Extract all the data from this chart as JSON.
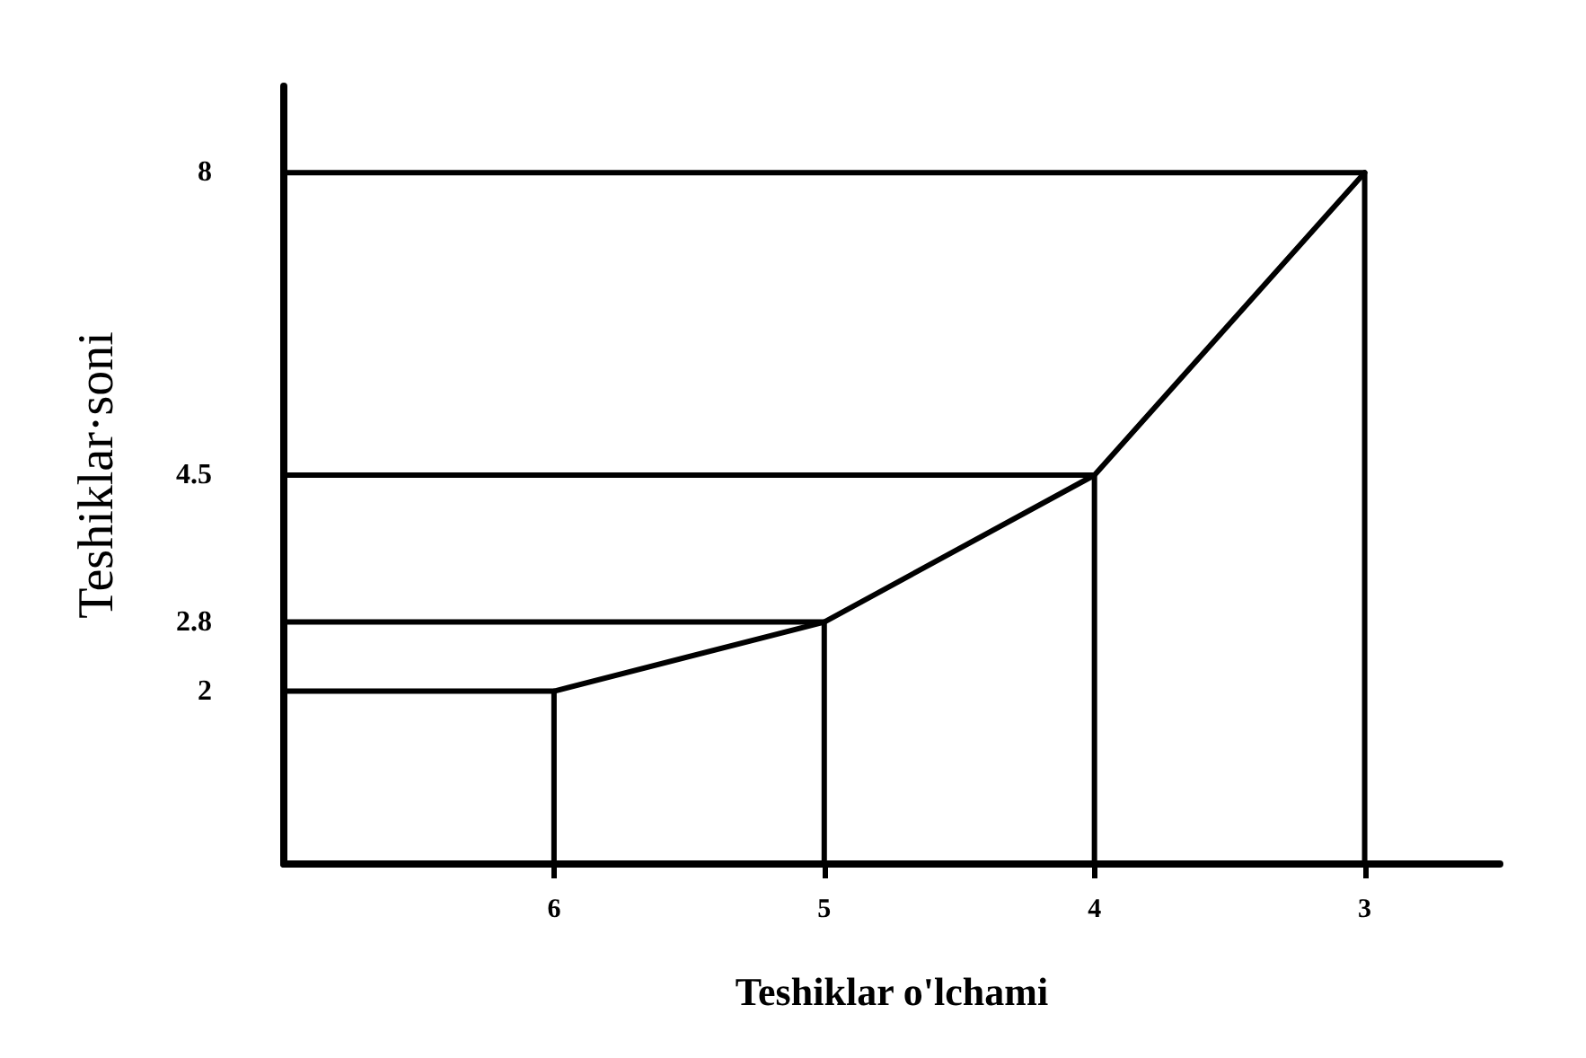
{
  "chart_data": {
    "type": "line",
    "xlabel": "Teshiklar o'lchami",
    "ylabel": "Teshiklar·soni",
    "xlim": [
      7,
      2.5
    ],
    "ylim": [
      0,
      9
    ],
    "xticks": [
      6,
      5,
      4,
      3
    ],
    "yticks": [
      2,
      2.8,
      4.5,
      8
    ],
    "marker": "none",
    "series": [
      {
        "color": "#000000",
        "x": [
          6,
          5,
          4,
          3
        ],
        "values": [
          2,
          2.8,
          4.5,
          8
        ]
      },
      {
        "color": "#000000",
        "x": [
          7,
          6,
          6
        ],
        "values": [
          2,
          2,
          0
        ]
      },
      {
        "color": "#000000",
        "x": [
          7,
          5,
          5
        ],
        "values": [
          2.8,
          2.8,
          0
        ]
      },
      {
        "color": "#000000",
        "x": [
          7,
          4,
          4
        ],
        "values": [
          4.5,
          4.5,
          0
        ]
      },
      {
        "color": "#000000",
        "x": [
          7,
          3,
          3
        ],
        "values": [
          8,
          8,
          0
        ]
      }
    ]
  }
}
